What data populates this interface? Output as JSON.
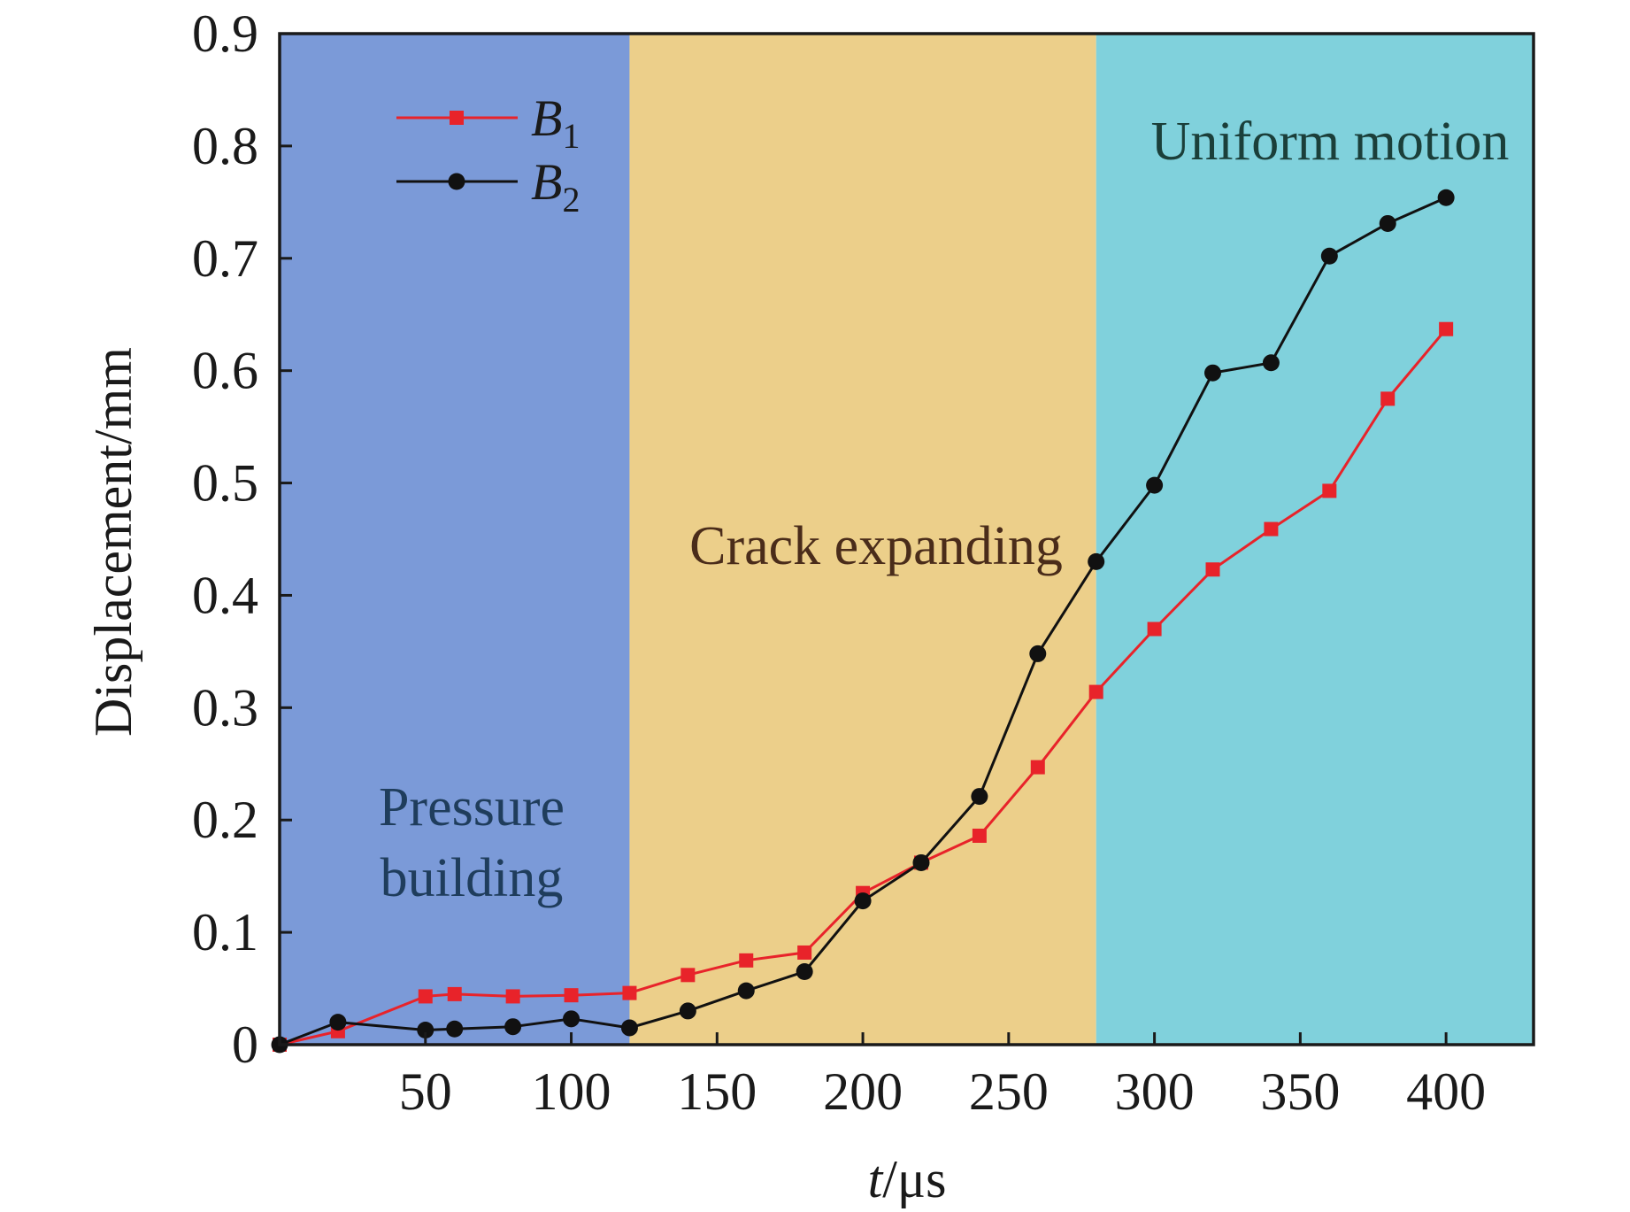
{
  "chart_data": {
    "type": "line",
    "title": "",
    "xlabel_italic": "t",
    "xlabel_rest": "/μs",
    "ylabel": "Displacement/mm",
    "xlim": [
      0,
      430
    ],
    "ylim": [
      0,
      0.9
    ],
    "x_ticks": [
      50,
      100,
      150,
      200,
      250,
      300,
      350,
      400
    ],
    "y_ticks": [
      0,
      0.1,
      0.2,
      0.3,
      0.4,
      0.5,
      0.6,
      0.7,
      0.8,
      0.9
    ],
    "x_tick_labels": [
      "50",
      "100",
      "150",
      "200",
      "250",
      "300",
      "350",
      "400"
    ],
    "y_tick_labels": [
      "0",
      "0.1",
      "0.2",
      "0.3",
      "0.4",
      "0.5",
      "0.6",
      "0.7",
      "0.8",
      "0.9"
    ],
    "grid": false,
    "legend_position": "top-left",
    "regions": [
      {
        "label": "Pressure building",
        "lines": [
          "Pressure",
          "building"
        ],
        "x_start": 0,
        "x_end": 120,
        "color": "#7b9ad8",
        "text_color": "#1f3d5c"
      },
      {
        "label": "Crack expanding",
        "lines": [
          "Crack expanding"
        ],
        "x_start": 120,
        "x_end": 280,
        "color": "#eccf8a",
        "text_color": "#4a2c1a"
      },
      {
        "label": "Uniform motion",
        "lines": [
          "Uniform motion"
        ],
        "x_start": 280,
        "x_end": 430,
        "color": "#80d1dc",
        "text_color": "#1b3f3a"
      }
    ],
    "series": [
      {
        "name": "B1",
        "legend_main": "B",
        "legend_sub": "1",
        "color": "#e8232a",
        "marker": "square",
        "x": [
          0,
          20,
          50,
          60,
          80,
          100,
          120,
          140,
          160,
          180,
          200,
          220,
          240,
          260,
          280,
          300,
          320,
          340,
          360,
          380,
          400
        ],
        "y": [
          0,
          0.012,
          0.043,
          0.045,
          0.043,
          0.044,
          0.046,
          0.062,
          0.075,
          0.082,
          0.135,
          0.162,
          0.186,
          0.247,
          0.314,
          0.37,
          0.423,
          0.459,
          0.493,
          0.575,
          0.637
        ]
      },
      {
        "name": "B2",
        "legend_main": "B",
        "legend_sub": "2",
        "color": "#111111",
        "marker": "circle",
        "x": [
          0,
          20,
          50,
          60,
          80,
          100,
          120,
          140,
          160,
          180,
          200,
          220,
          240,
          260,
          280,
          300,
          320,
          340,
          360,
          380,
          400
        ],
        "y": [
          0,
          0.02,
          0.013,
          0.014,
          0.016,
          0.023,
          0.015,
          0.03,
          0.048,
          0.065,
          0.128,
          0.162,
          0.221,
          0.348,
          0.43,
          0.498,
          0.598,
          0.607,
          0.702,
          0.731,
          0.754
        ]
      }
    ]
  }
}
